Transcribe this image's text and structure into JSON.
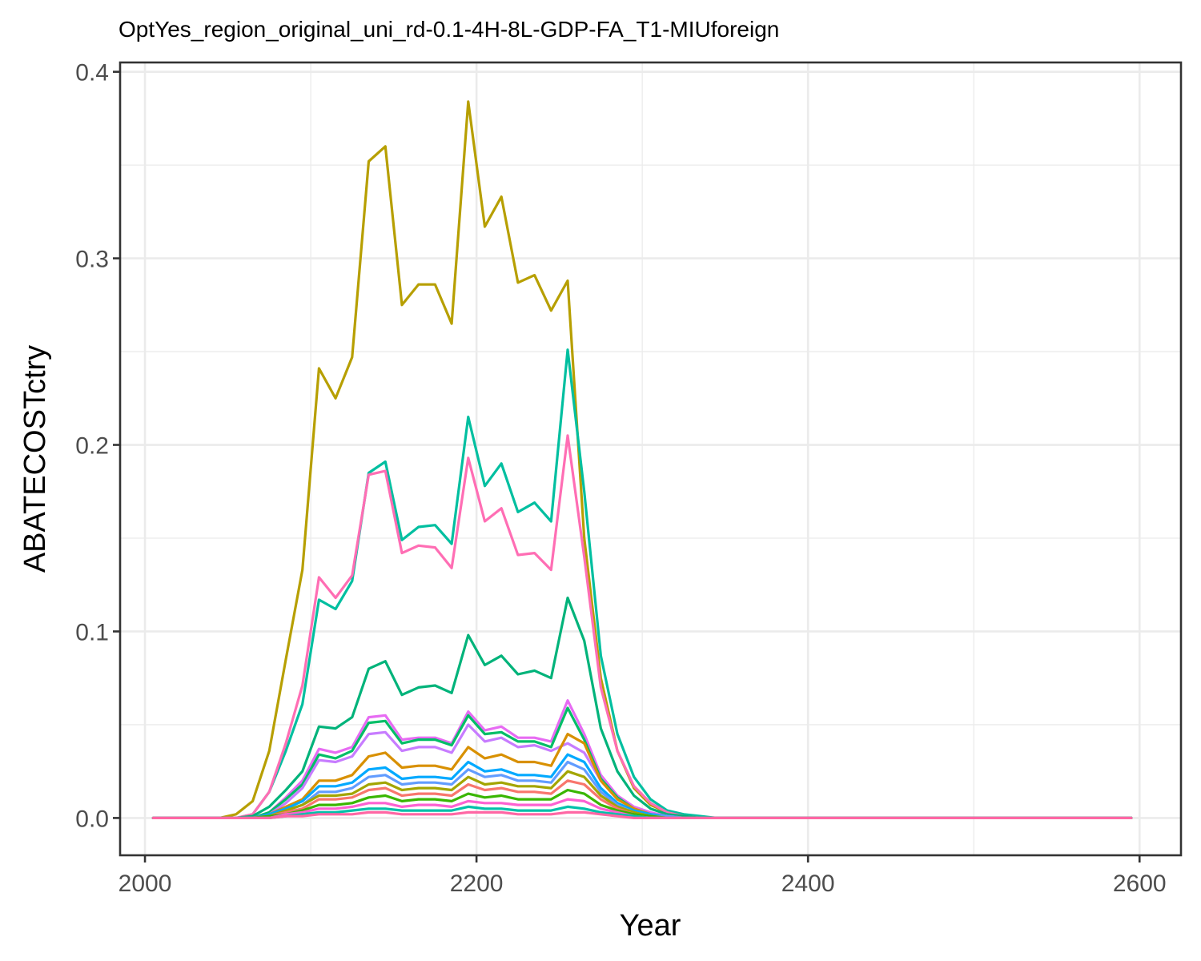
{
  "chart_data": {
    "type": "line",
    "title": "OptYes_region_original_uni_rd-0.1-4H-8L-GDP-FA_T1-MIUforeign",
    "xlabel": "Year",
    "ylabel": "ABATECOSTctry",
    "xlim": [
      1985,
      2625
    ],
    "ylim": [
      -0.02,
      0.405
    ],
    "x_ticks": [
      2000,
      2200,
      2400,
      2600
    ],
    "x_tick_labels": [
      "2000",
      "2200",
      "2400",
      "2600"
    ],
    "y_ticks": [
      0.0,
      0.1,
      0.2,
      0.3,
      0.4
    ],
    "y_tick_labels": [
      "0.0",
      "0.1",
      "0.2",
      "0.3",
      "0.4"
    ],
    "grid": true,
    "legend": "none",
    "x": [
      2005,
      2015,
      2025,
      2035,
      2045,
      2055,
      2065,
      2075,
      2085,
      2095,
      2105,
      2115,
      2125,
      2135,
      2145,
      2155,
      2165,
      2175,
      2185,
      2195,
      2205,
      2215,
      2225,
      2235,
      2245,
      2255,
      2265,
      2275,
      2285,
      2295,
      2305,
      2315,
      2325,
      2335,
      2345,
      2355,
      2365,
      2375,
      2385,
      2395,
      2595
    ],
    "series": [
      {
        "color": "#B79F00",
        "values": [
          0,
          0,
          0,
          0,
          0,
          0.002,
          0.009,
          0.036,
          0.085,
          0.133,
          0.241,
          0.225,
          0.247,
          0.352,
          0.36,
          0.275,
          0.286,
          0.286,
          0.265,
          0.384,
          0.317,
          0.333,
          0.287,
          0.291,
          0.272,
          0.288,
          0.15,
          0.075,
          0.036,
          0.016,
          0.007,
          0.003,
          0.001,
          0,
          0,
          0,
          0,
          0,
          0,
          0,
          0
        ]
      },
      {
        "color": "#00BFA0",
        "values": [
          0,
          0,
          0,
          0,
          0,
          0,
          0.002,
          0.014,
          0.036,
          0.061,
          0.117,
          0.112,
          0.127,
          0.185,
          0.191,
          0.149,
          0.156,
          0.157,
          0.147,
          0.215,
          0.178,
          0.19,
          0.164,
          0.169,
          0.159,
          0.251,
          0.175,
          0.087,
          0.045,
          0.022,
          0.01,
          0.004,
          0.002,
          0.001,
          0,
          0,
          0,
          0,
          0,
          0,
          0
        ]
      },
      {
        "color": "#FF6EB4",
        "values": [
          0,
          0,
          0,
          0,
          0,
          0,
          0.002,
          0.014,
          0.04,
          0.071,
          0.129,
          0.118,
          0.13,
          0.184,
          0.186,
          0.142,
          0.146,
          0.145,
          0.134,
          0.193,
          0.159,
          0.166,
          0.141,
          0.142,
          0.133,
          0.205,
          0.14,
          0.07,
          0.036,
          0.017,
          0.008,
          0.003,
          0.001,
          0,
          0,
          0,
          0,
          0,
          0,
          0,
          0
        ]
      },
      {
        "color": "#00B37A",
        "values": [
          0,
          0,
          0,
          0,
          0,
          0,
          0.001,
          0.006,
          0.015,
          0.025,
          0.049,
          0.048,
          0.054,
          0.08,
          0.084,
          0.066,
          0.07,
          0.071,
          0.067,
          0.098,
          0.082,
          0.087,
          0.077,
          0.079,
          0.075,
          0.118,
          0.095,
          0.048,
          0.025,
          0.012,
          0.005,
          0.002,
          0.001,
          0,
          0,
          0,
          0,
          0,
          0,
          0,
          0
        ]
      },
      {
        "color": "#E76BF3",
        "values": [
          0,
          0,
          0,
          0,
          0,
          0,
          0,
          0.003,
          0.011,
          0.02,
          0.037,
          0.035,
          0.038,
          0.054,
          0.055,
          0.042,
          0.043,
          0.043,
          0.04,
          0.057,
          0.047,
          0.049,
          0.043,
          0.043,
          0.041,
          0.063,
          0.045,
          0.023,
          0.012,
          0.006,
          0.003,
          0.001,
          0,
          0,
          0,
          0,
          0,
          0,
          0,
          0,
          0
        ]
      },
      {
        "color": "#00BE67",
        "values": [
          0,
          0,
          0,
          0,
          0,
          0,
          0,
          0.003,
          0.01,
          0.018,
          0.034,
          0.032,
          0.036,
          0.051,
          0.052,
          0.04,
          0.042,
          0.042,
          0.039,
          0.055,
          0.045,
          0.046,
          0.041,
          0.041,
          0.038,
          0.059,
          0.042,
          0.021,
          0.011,
          0.005,
          0.002,
          0.001,
          0,
          0,
          0,
          0,
          0,
          0,
          0,
          0,
          0
        ]
      },
      {
        "color": "#C77CFF",
        "values": [
          0,
          0,
          0,
          0,
          0,
          0,
          0,
          0.002,
          0.008,
          0.016,
          0.031,
          0.03,
          0.033,
          0.045,
          0.046,
          0.036,
          0.038,
          0.038,
          0.035,
          0.05,
          0.041,
          0.043,
          0.038,
          0.039,
          0.036,
          0.04,
          0.035,
          0.02,
          0.01,
          0.005,
          0.002,
          0.001,
          0,
          0,
          0,
          0,
          0,
          0,
          0,
          0,
          0
        ]
      },
      {
        "color": "#D89000",
        "values": [
          0,
          0,
          0,
          0,
          0,
          0,
          0,
          0.002,
          0.006,
          0.01,
          0.02,
          0.02,
          0.023,
          0.033,
          0.035,
          0.027,
          0.028,
          0.028,
          0.026,
          0.038,
          0.032,
          0.034,
          0.03,
          0.03,
          0.028,
          0.045,
          0.04,
          0.02,
          0.01,
          0.005,
          0.002,
          0.001,
          0,
          0,
          0,
          0,
          0,
          0,
          0,
          0,
          0
        ]
      },
      {
        "color": "#00A9FF",
        "values": [
          0,
          0,
          0,
          0,
          0,
          0,
          0,
          0.002,
          0.005,
          0.009,
          0.017,
          0.017,
          0.019,
          0.026,
          0.027,
          0.021,
          0.022,
          0.022,
          0.021,
          0.03,
          0.025,
          0.026,
          0.023,
          0.023,
          0.022,
          0.034,
          0.03,
          0.016,
          0.008,
          0.004,
          0.002,
          0.001,
          0,
          0,
          0,
          0,
          0,
          0,
          0,
          0,
          0
        ]
      },
      {
        "color": "#619CFF",
        "values": [
          0,
          0,
          0,
          0,
          0,
          0,
          0,
          0.001,
          0.004,
          0.007,
          0.014,
          0.014,
          0.016,
          0.022,
          0.023,
          0.018,
          0.019,
          0.019,
          0.018,
          0.026,
          0.022,
          0.023,
          0.02,
          0.02,
          0.019,
          0.03,
          0.026,
          0.014,
          0.007,
          0.003,
          0.001,
          0.001,
          0,
          0,
          0,
          0,
          0,
          0,
          0,
          0,
          0
        ]
      },
      {
        "color": "#A3A500",
        "values": [
          0,
          0,
          0,
          0,
          0,
          0,
          0,
          0.001,
          0.004,
          0.007,
          0.012,
          0.012,
          0.013,
          0.018,
          0.019,
          0.015,
          0.016,
          0.016,
          0.015,
          0.022,
          0.018,
          0.019,
          0.017,
          0.017,
          0.016,
          0.025,
          0.022,
          0.012,
          0.006,
          0.003,
          0.001,
          0,
          0,
          0,
          0,
          0,
          0,
          0,
          0,
          0,
          0
        ]
      },
      {
        "color": "#F8766D",
        "values": [
          0,
          0,
          0,
          0,
          0,
          0,
          0,
          0.001,
          0.003,
          0.005,
          0.01,
          0.01,
          0.011,
          0.015,
          0.016,
          0.012,
          0.013,
          0.013,
          0.012,
          0.018,
          0.015,
          0.016,
          0.014,
          0.014,
          0.013,
          0.02,
          0.018,
          0.01,
          0.005,
          0.002,
          0.001,
          0,
          0,
          0,
          0,
          0,
          0,
          0,
          0,
          0,
          0
        ]
      },
      {
        "color": "#39B600",
        "values": [
          0,
          0,
          0,
          0,
          0,
          0,
          0,
          0.001,
          0.002,
          0.004,
          0.007,
          0.007,
          0.008,
          0.011,
          0.012,
          0.009,
          0.01,
          0.01,
          0.009,
          0.013,
          0.011,
          0.012,
          0.01,
          0.01,
          0.01,
          0.015,
          0.013,
          0.007,
          0.004,
          0.002,
          0.001,
          0,
          0,
          0,
          0,
          0,
          0,
          0,
          0,
          0,
          0
        ]
      },
      {
        "color": "#FD61D1",
        "values": [
          0,
          0,
          0,
          0,
          0,
          0,
          0,
          0,
          0.002,
          0.003,
          0.005,
          0.005,
          0.006,
          0.008,
          0.008,
          0.006,
          0.007,
          0.007,
          0.006,
          0.009,
          0.008,
          0.008,
          0.007,
          0.007,
          0.007,
          0.01,
          0.009,
          0.005,
          0.003,
          0.001,
          0,
          0,
          0,
          0,
          0,
          0,
          0,
          0,
          0,
          0,
          0
        ]
      },
      {
        "color": "#00C1AA",
        "values": [
          0,
          0,
          0,
          0,
          0,
          0,
          0,
          0,
          0.001,
          0.002,
          0.003,
          0.003,
          0.004,
          0.005,
          0.005,
          0.004,
          0.004,
          0.004,
          0.004,
          0.006,
          0.005,
          0.005,
          0.004,
          0.004,
          0.004,
          0.006,
          0.005,
          0.003,
          0.002,
          0.001,
          0,
          0,
          0,
          0,
          0,
          0,
          0,
          0,
          0,
          0,
          0
        ]
      },
      {
        "color": "#FF67A4",
        "values": [
          0,
          0,
          0,
          0,
          0,
          0,
          0,
          0,
          0.001,
          0.001,
          0.002,
          0.002,
          0.002,
          0.003,
          0.003,
          0.002,
          0.002,
          0.002,
          0.002,
          0.003,
          0.003,
          0.003,
          0.002,
          0.002,
          0.002,
          0.003,
          0.003,
          0.002,
          0.001,
          0,
          0,
          0,
          0,
          0,
          0,
          0,
          0,
          0,
          0,
          0,
          0
        ]
      }
    ]
  }
}
